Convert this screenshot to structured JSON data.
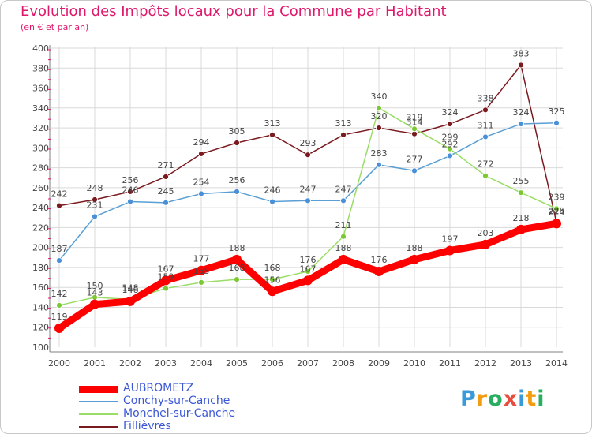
{
  "title": "Evolution des Impôts locaux pour la Commune par Habitant",
  "subtitle": "(en € et par an)",
  "logo": {
    "text": "Proxiti",
    "letter_colors": [
      "#3a9ad9",
      "#f39c12",
      "#27ae60",
      "#e74c3c",
      "#3a9ad9",
      "#f39c12",
      "#27ae60"
    ]
  },
  "colors": {
    "title": "#e0186c",
    "axis": "#808080",
    "grid": "#d9d9d9",
    "tick_label": "#444444",
    "data_label": "#444444",
    "legend_text": "#3b57d6"
  },
  "chart_data": {
    "type": "line",
    "title": "Evolution des Impôts locaux pour la Commune par Habitant",
    "subtitle": "(en € et par an)",
    "xlabel": "",
    "ylabel": "",
    "categories": [
      "2000",
      "2001",
      "2002",
      "2003",
      "2004",
      "2005",
      "2006",
      "2007",
      "2008",
      "2009",
      "2010",
      "2011",
      "2012",
      "2013",
      "2014"
    ],
    "ylim": [
      100,
      400
    ],
    "yticks": [
      100,
      120,
      140,
      160,
      180,
      200,
      220,
      240,
      260,
      280,
      300,
      320,
      340,
      360,
      380,
      400
    ],
    "grid": true,
    "legend_position": "bottom-left",
    "series": [
      {
        "name": "Fillièvres",
        "color": "#7a1a1f",
        "marker_color": "#7a1a1f",
        "values": [
          242,
          248,
          256,
          271,
          294,
          305,
          313,
          293,
          313,
          320,
          314,
          324,
          338,
          383,
          225
        ]
      },
      {
        "name": "Conchy-sur-Canche",
        "color": "#5a9fd4",
        "marker_color": "#4a90d9",
        "values": [
          187,
          231,
          246,
          245,
          254,
          256,
          246,
          247,
          247,
          283,
          277,
          292,
          311,
          324,
          325
        ]
      },
      {
        "name": "Monchel-sur-Canche",
        "color": "#99dd66",
        "marker_color": "#7cc833",
        "values": [
          142,
          150,
          148,
          159,
          165,
          168,
          168,
          176,
          211,
          340,
          319,
          299,
          272,
          255,
          239
        ]
      },
      {
        "name": "AUBROMETZ",
        "color": "#ff0000",
        "marker_color": "#ff0000",
        "values": [
          119,
          143,
          146,
          167,
          177,
          188,
          156,
          167,
          188,
          176,
          188,
          197,
          203,
          218,
          224
        ]
      }
    ],
    "data_labels": [
      [
        242,
        248,
        256,
        271,
        294,
        305,
        313,
        293,
        313,
        320,
        314,
        324,
        338,
        383,
        225
      ],
      [
        187,
        231,
        246,
        245,
        254,
        256,
        246,
        247,
        247,
        283,
        277,
        292,
        311,
        324,
        325
      ],
      [
        142,
        150,
        148,
        159,
        165,
        168,
        168,
        176,
        211,
        340,
        319,
        299,
        272,
        255,
        239
      ],
      [
        119,
        143,
        146,
        167,
        177,
        188,
        156,
        167,
        188,
        176,
        188,
        197,
        203,
        218,
        224
      ]
    ]
  },
  "legend": [
    {
      "name": "AUBROMETZ",
      "color": "#ff0000",
      "thick": true
    },
    {
      "name": "Conchy-sur-Canche",
      "color": "#5a9fd4",
      "thick": false
    },
    {
      "name": "Monchel-sur-Canche",
      "color": "#99dd66",
      "thick": false
    },
    {
      "name": "Fillièvres",
      "color": "#7a1a1f",
      "thick": false
    }
  ]
}
